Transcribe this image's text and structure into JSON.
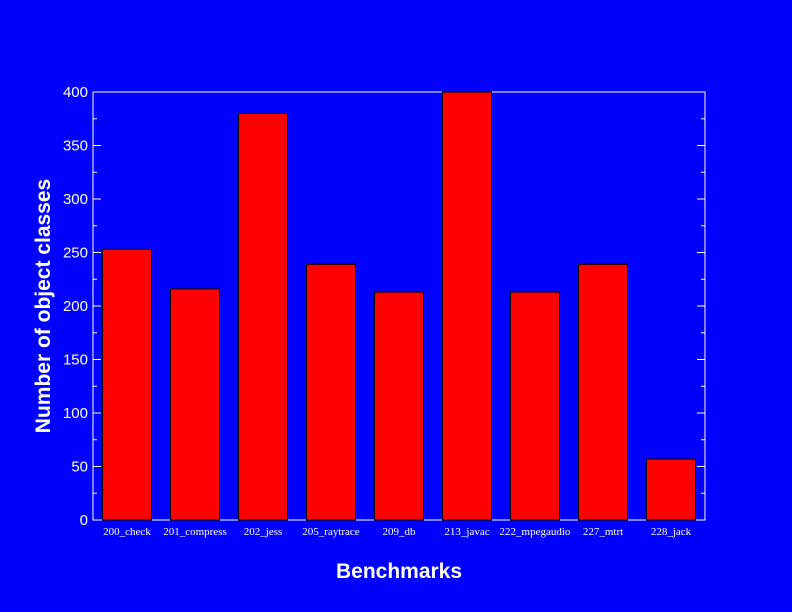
{
  "colors": {
    "background": "#0000ff",
    "bar_fill": "#ff0000",
    "bar_stroke": "#000000",
    "axis": "#ffffff",
    "text": "#ffffff"
  },
  "chart_data": {
    "type": "bar",
    "title": "",
    "xlabel": "Benchmarks",
    "ylabel": "Number of object classes",
    "categories": [
      "200_check",
      "201_compress",
      "202_jess",
      "205_raytrace",
      "209_db",
      "213_javac",
      "222_mpegaudio",
      "227_mtrt",
      "228_jack"
    ],
    "values": [
      253,
      216,
      380,
      239,
      213,
      400,
      213,
      239,
      57
    ],
    "ylim": [
      0,
      400
    ],
    "yticks": [
      0,
      50,
      100,
      150,
      200,
      250,
      300,
      350,
      400
    ],
    "grid": false,
    "legend": "none"
  }
}
